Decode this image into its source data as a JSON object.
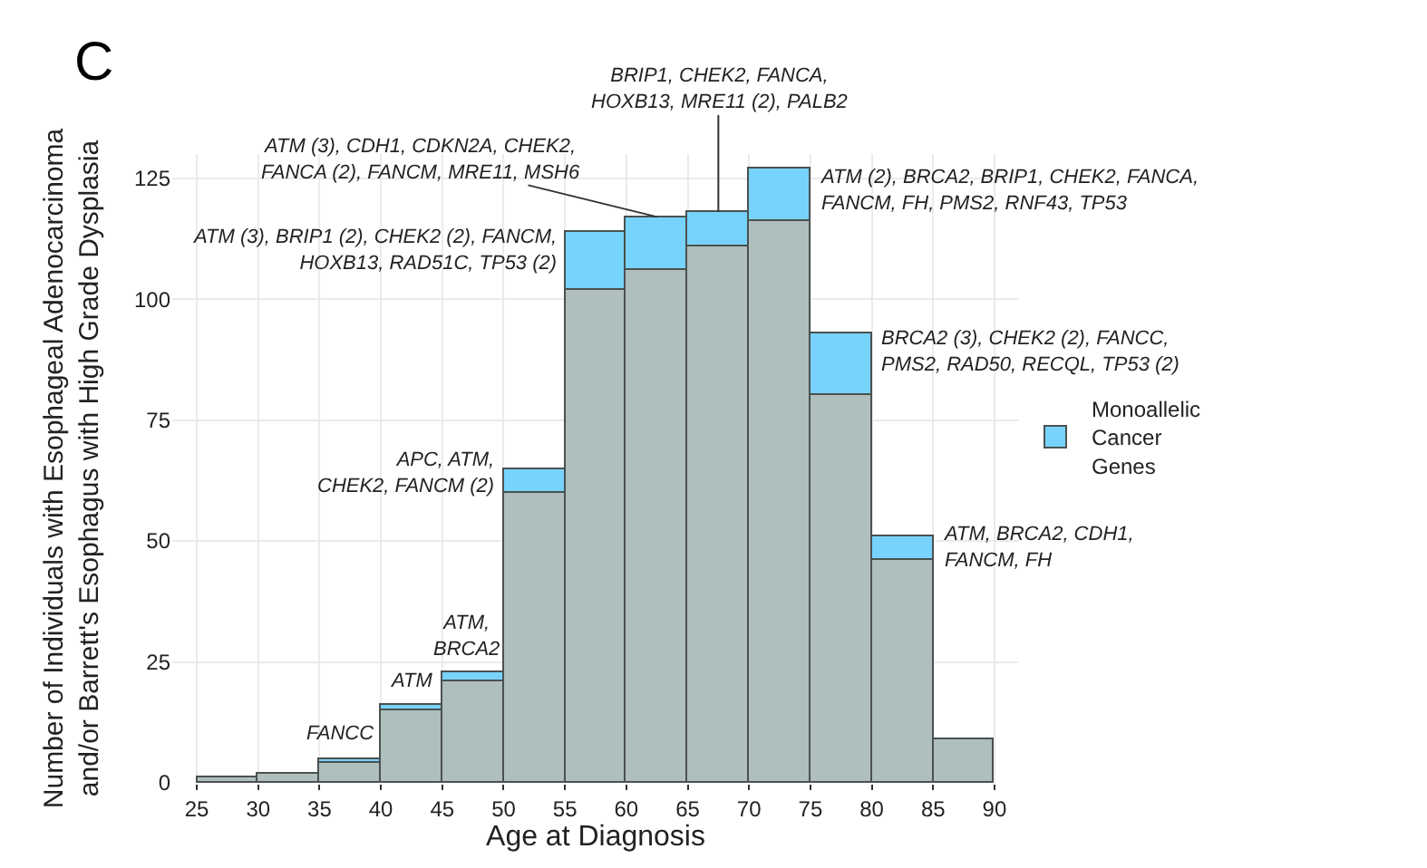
{
  "chart_data": {
    "type": "bar",
    "stacked": true,
    "xlabel": "Age at Diagnosis",
    "ylabel": "Number of Individuals with Esophageal Adenocarcinoma\nand/or Barrett's Esophagus with High Grade Dysplasia",
    "x": [
      27.5,
      32.5,
      37.5,
      42.5,
      47.5,
      52.5,
      57.5,
      62.5,
      67.5,
      72.5,
      77.5,
      82.5,
      87.5
    ],
    "series": [
      {
        "color": "#aebfbd",
        "values": [
          1,
          2,
          4,
          15,
          21,
          60,
          102,
          106,
          111,
          116,
          80,
          46,
          9
        ]
      },
      {
        "name": "Monoallelic\nCancer\nGenes",
        "color": "#77d3fb",
        "values": [
          0,
          0,
          1,
          1,
          2,
          5,
          12,
          11,
          7,
          11,
          13,
          5,
          0
        ]
      }
    ],
    "xlim": [
      23,
      92
    ],
    "xticks": [
      25,
      30,
      35,
      40,
      45,
      50,
      55,
      60,
      65,
      70,
      75,
      80,
      85,
      90
    ],
    "ylim": [
      0,
      130
    ],
    "yticks": [
      0,
      25,
      50,
      75,
      100,
      125
    ],
    "grid": true,
    "legend": "right",
    "annotations": [
      "C",
      {
        "text": "FANCC",
        "x": 37.5,
        "y": 5
      },
      {
        "text": "ATM",
        "x": 42.5,
        "y": 16
      },
      {
        "text": "ATM,\nBRCA2",
        "x": 47.5,
        "y": 23
      },
      {
        "text": "APC, ATM,\nCHEK2, FANCM (2)",
        "x": 52.5,
        "y": 65
      },
      {
        "text": "ATM (3), BRIP1 (2), CHEK2 (2), FANCM,\nHOXB13, RAD51C, TP53 (2)",
        "x": 57.5,
        "y": 114
      },
      {
        "text": "ATM (3), CDH1, CDKN2A, CHEK2,\nFANCA (2), FANCM, MRE11, MSH6",
        "x": 62.5,
        "y": 117
      },
      {
        "text": "BRIP1, CHEK2, FANCA,\nHOXB13, MRE11 (2), PALB2",
        "x": 67.5,
        "y": 118
      },
      {
        "text": "ATM (2), BRCA2, BRIP1, CHEK2, FANCA,\nFANCM, FH, PMS2, RNF43, TP53",
        "x": 72.5,
        "y": 127
      },
      {
        "text": "BRCA2 (3), CHEK2 (2), FANCC,\nPMS2, RAD50, RECQL, TP53 (2)",
        "x": 77.5,
        "y": 93
      },
      {
        "text": "ATM, BRCA2, CDH1,\nFANCM, FH",
        "x": 82.5,
        "y": 51
      }
    ]
  }
}
